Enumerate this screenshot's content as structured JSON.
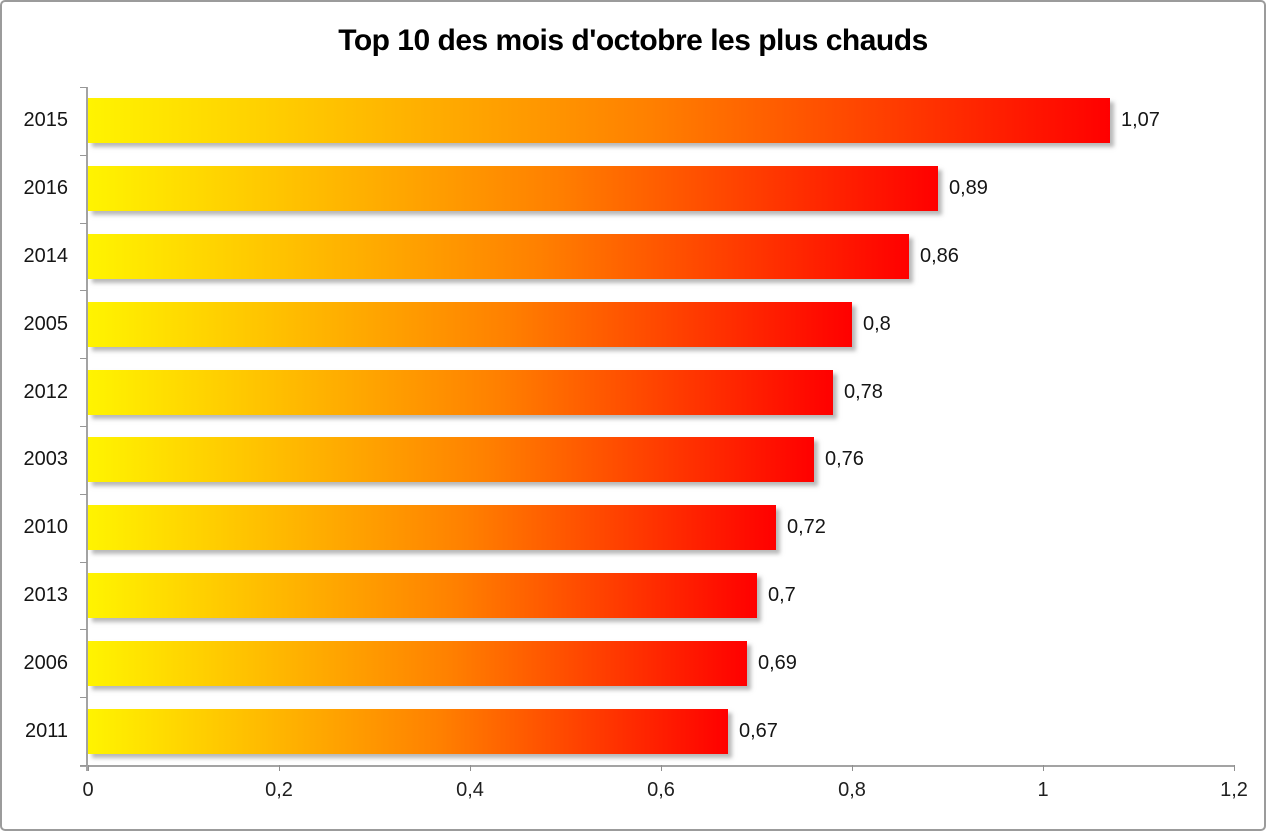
{
  "frame": {
    "background_color": "#ffffff",
    "border_color": "#9b9b9b"
  },
  "chart_data": {
    "type": "bar",
    "orientation": "horizontal",
    "title": "Top 10 des mois d'octobre les plus chauds",
    "categories": [
      "2015",
      "2016",
      "2014",
      "2005",
      "2012",
      "2003",
      "2010",
      "2013",
      "2006",
      "2011"
    ],
    "values": [
      1.07,
      0.89,
      0.86,
      0.8,
      0.78,
      0.76,
      0.72,
      0.7,
      0.69,
      0.67
    ],
    "value_labels": [
      "1,07",
      "0,89",
      "0,86",
      "0,8",
      "0,78",
      "0,76",
      "0,72",
      "0,7",
      "0,69",
      "0,67"
    ],
    "xlabel": "",
    "ylabel": "",
    "x_axis": {
      "min": 0,
      "max": 1.2,
      "tick_values": [
        0,
        0.2,
        0.4,
        0.6,
        0.8,
        1,
        1.2
      ],
      "tick_labels": [
        "0",
        "0,2",
        "0,4",
        "0,6",
        "0,8",
        "1",
        "1,2"
      ]
    },
    "grid": false,
    "legend": false,
    "bar_gradient_start_color": "#fff400",
    "bar_gradient_end_color": "#ff0000",
    "axis_color": "#a3a3a3",
    "text_color": "#151515"
  }
}
